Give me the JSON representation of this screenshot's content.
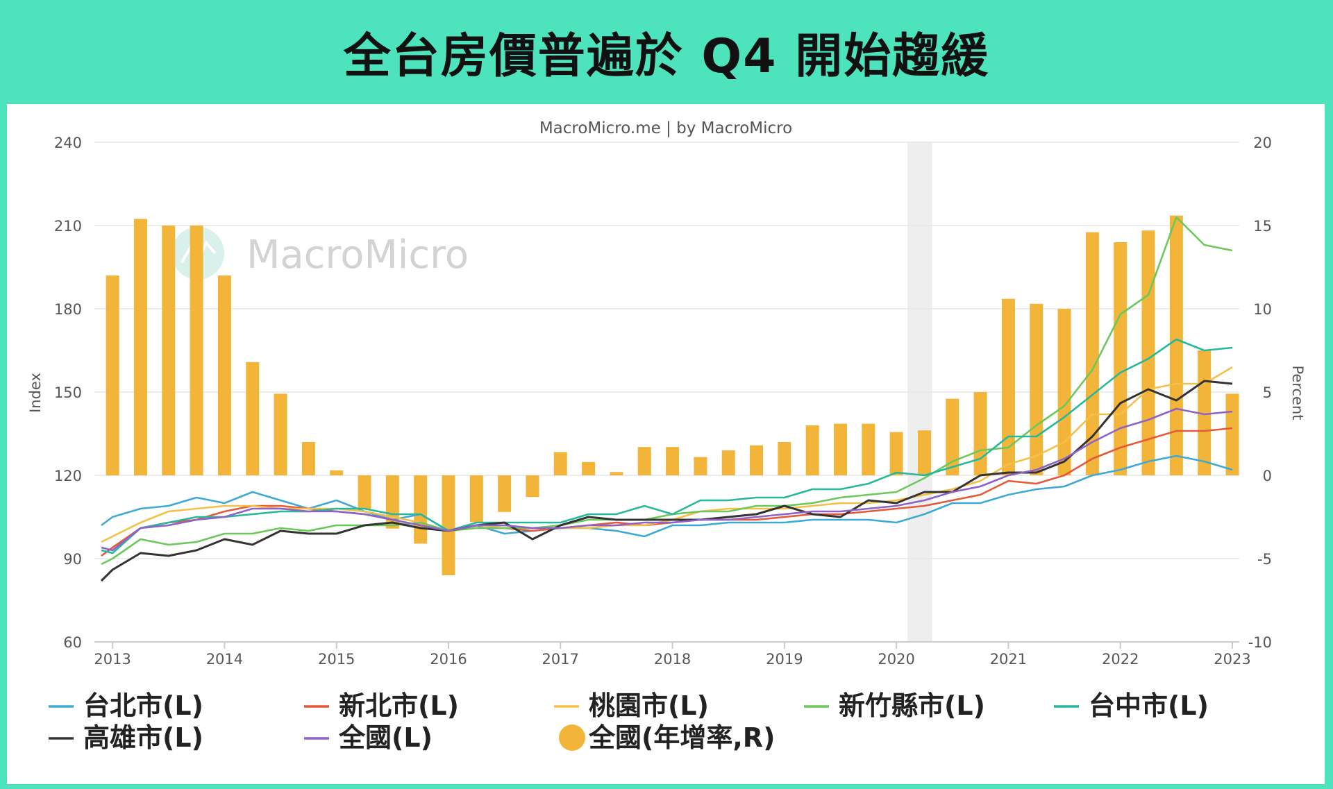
{
  "banner": {
    "title": "全台房價普遍於 Q4 開始趨緩"
  },
  "source": "MacroMicro.me | by MacroMicro",
  "watermark": "MacroMicro",
  "colors": {
    "台北市": "#3fa9d6",
    "新北市": "#e5593a",
    "桃園市": "#f5c04a",
    "新竹縣市": "#6cc85a",
    "台中市": "#26b89a",
    "高雄市": "#333333",
    "全國": "#8e63c9",
    "bars": "#f2b53a",
    "recession": "#eeeeee"
  },
  "chart_data": {
    "type": "line+bar",
    "title": "",
    "ylabel_left": "Index",
    "ylabel_right": "Percent",
    "ylim_left": [
      60,
      240
    ],
    "ylim_right": [
      -10,
      20
    ],
    "yticks_left": [
      "60",
      "90",
      "120",
      "150",
      "180",
      "210",
      "240"
    ],
    "yticks_right": [
      "-10",
      "-5",
      "0",
      "5",
      "10",
      "15",
      "20"
    ],
    "xlim": [
      2012.9,
      2023.0
    ],
    "xticks": [
      "2013",
      "2014",
      "2015",
      "2016",
      "2017",
      "2018",
      "2019",
      "2020",
      "2021",
      "2022",
      "2023"
    ],
    "grid": true,
    "shaded_region": [
      2020.1,
      2020.32
    ],
    "x": [
      2012.9,
      2013.0,
      2013.25,
      2013.5,
      2013.75,
      2014.0,
      2014.25,
      2014.5,
      2014.75,
      2015.0,
      2015.25,
      2015.5,
      2015.75,
      2016.0,
      2016.25,
      2016.5,
      2016.75,
      2017.0,
      2017.25,
      2017.5,
      2017.75,
      2018.0,
      2018.25,
      2018.5,
      2018.75,
      2019.0,
      2019.25,
      2019.5,
      2019.75,
      2020.0,
      2020.25,
      2020.5,
      2020.75,
      2021.0,
      2021.25,
      2021.5,
      2021.75,
      2022.0,
      2022.25,
      2022.5,
      2022.75,
      2023.0
    ],
    "series": [
      {
        "name": "台北市(L)",
        "key": "台北市",
        "values": [
          102,
          105,
          108,
          109,
          112,
          110,
          114,
          111,
          108,
          111,
          107,
          104,
          106,
          100,
          102,
          99,
          100,
          101,
          101,
          100,
          98,
          102,
          102,
          103,
          103,
          103,
          104,
          104,
          104,
          103,
          106,
          110,
          110,
          113,
          115,
          116,
          120,
          122,
          125,
          127,
          125,
          122
        ]
      },
      {
        "name": "新北市(L)",
        "key": "新北市",
        "values": [
          91,
          94,
          101,
          103,
          104,
          107,
          109,
          109,
          108,
          107,
          106,
          104,
          102,
          100,
          101,
          101,
          100,
          101,
          102,
          103,
          102,
          103,
          104,
          104,
          104,
          105,
          106,
          106,
          107,
          108,
          109,
          111,
          113,
          118,
          117,
          120,
          126,
          130,
          133,
          136,
          136,
          137
        ]
      },
      {
        "name": "桃園市(L)",
        "key": "桃園市",
        "values": [
          96,
          98,
          103,
          107,
          108,
          109,
          109,
          108,
          108,
          108,
          107,
          105,
          103,
          100,
          101,
          102,
          101,
          101,
          101,
          102,
          102,
          104,
          107,
          108,
          108,
          108,
          109,
          110,
          110,
          111,
          113,
          115,
          118,
          124,
          127,
          132,
          142,
          142,
          151,
          153,
          153,
          159
        ]
      },
      {
        "name": "新竹縣市(L)",
        "key": "新竹縣市",
        "values": [
          88,
          90,
          97,
          95,
          96,
          99,
          99,
          101,
          100,
          102,
          102,
          102,
          103,
          100,
          101,
          101,
          101,
          102,
          104,
          104,
          104,
          106,
          107,
          107,
          109,
          109,
          110,
          112,
          113,
          114,
          119,
          125,
          129,
          130,
          138,
          145,
          158,
          178,
          185,
          213,
          203,
          201
        ]
      },
      {
        "name": "台中市(L)",
        "key": "台中市",
        "values": [
          93,
          92,
          101,
          103,
          105,
          105,
          106,
          107,
          107,
          108,
          108,
          106,
          106,
          100,
          103,
          103,
          103,
          103,
          106,
          106,
          109,
          106,
          111,
          111,
          112,
          112,
          115,
          115,
          117,
          121,
          120,
          123,
          126,
          134,
          134,
          141,
          149,
          157,
          162,
          169,
          165,
          166
        ]
      },
      {
        "name": "高雄市(L)",
        "key": "高雄市",
        "values": [
          82,
          86,
          92,
          91,
          93,
          97,
          95,
          100,
          99,
          99,
          102,
          103,
          101,
          100,
          102,
          103,
          97,
          102,
          105,
          104,
          104,
          104,
          104,
          105,
          106,
          109,
          106,
          105,
          111,
          110,
          114,
          114,
          120,
          121,
          121,
          125,
          134,
          146,
          151,
          147,
          154,
          153
        ]
      },
      {
        "name": "全國(L)",
        "key": "全國",
        "values": [
          94,
          93,
          101,
          102,
          104,
          105,
          108,
          108,
          107,
          107,
          106,
          104,
          102,
          100,
          102,
          102,
          101,
          101,
          102,
          102,
          103,
          103,
          104,
          104,
          105,
          106,
          107,
          107,
          108,
          109,
          111,
          114,
          116,
          120,
          122,
          126,
          132,
          137,
          140,
          144,
          142,
          143
        ]
      }
    ],
    "bar_series": {
      "name": "全國(年增率,R)",
      "x": [
        2013.0,
        2013.25,
        2013.5,
        2013.75,
        2014.0,
        2014.25,
        2014.5,
        2014.75,
        2015.0,
        2015.25,
        2015.5,
        2015.75,
        2016.0,
        2016.25,
        2016.5,
        2016.75,
        2017.0,
        2017.25,
        2017.5,
        2017.75,
        2018.0,
        2018.25,
        2018.5,
        2018.75,
        2019.0,
        2019.25,
        2019.5,
        2019.75,
        2020.0,
        2020.25,
        2020.5,
        2020.75,
        2021.0,
        2021.25,
        2021.5,
        2021.75,
        2022.0,
        2022.25,
        2022.5,
        2022.75,
        2023.0
      ],
      "values": [
        12.0,
        15.4,
        15.0,
        15.0,
        12.0,
        6.8,
        4.9,
        2.0,
        0.3,
        -2.0,
        -3.2,
        -4.1,
        -6.0,
        -2.8,
        -2.2,
        -1.3,
        1.4,
        0.8,
        0.2,
        1.7,
        1.7,
        1.1,
        1.5,
        1.8,
        2.0,
        3.0,
        3.1,
        3.1,
        2.6,
        2.7,
        4.6,
        5.0,
        10.6,
        10.3,
        10.0,
        14.6,
        14.0,
        14.7,
        15.6,
        7.5,
        4.9
      ]
    }
  },
  "legend": [
    {
      "label": "台北市(L)",
      "key": "台北市",
      "kind": "line"
    },
    {
      "label": "新北市(L)",
      "key": "新北市",
      "kind": "line"
    },
    {
      "label": "桃園市(L)",
      "key": "桃園市",
      "kind": "line"
    },
    {
      "label": "新竹縣市(L)",
      "key": "新竹縣市",
      "kind": "line"
    },
    {
      "label": "台中市(L)",
      "key": "台中市",
      "kind": "line"
    },
    {
      "label": "高雄市(L)",
      "key": "高雄市",
      "kind": "line"
    },
    {
      "label": "全國(L)",
      "key": "全國",
      "kind": "line"
    },
    {
      "label": "全國(年增率,R)",
      "key": "bars",
      "kind": "dot"
    }
  ]
}
